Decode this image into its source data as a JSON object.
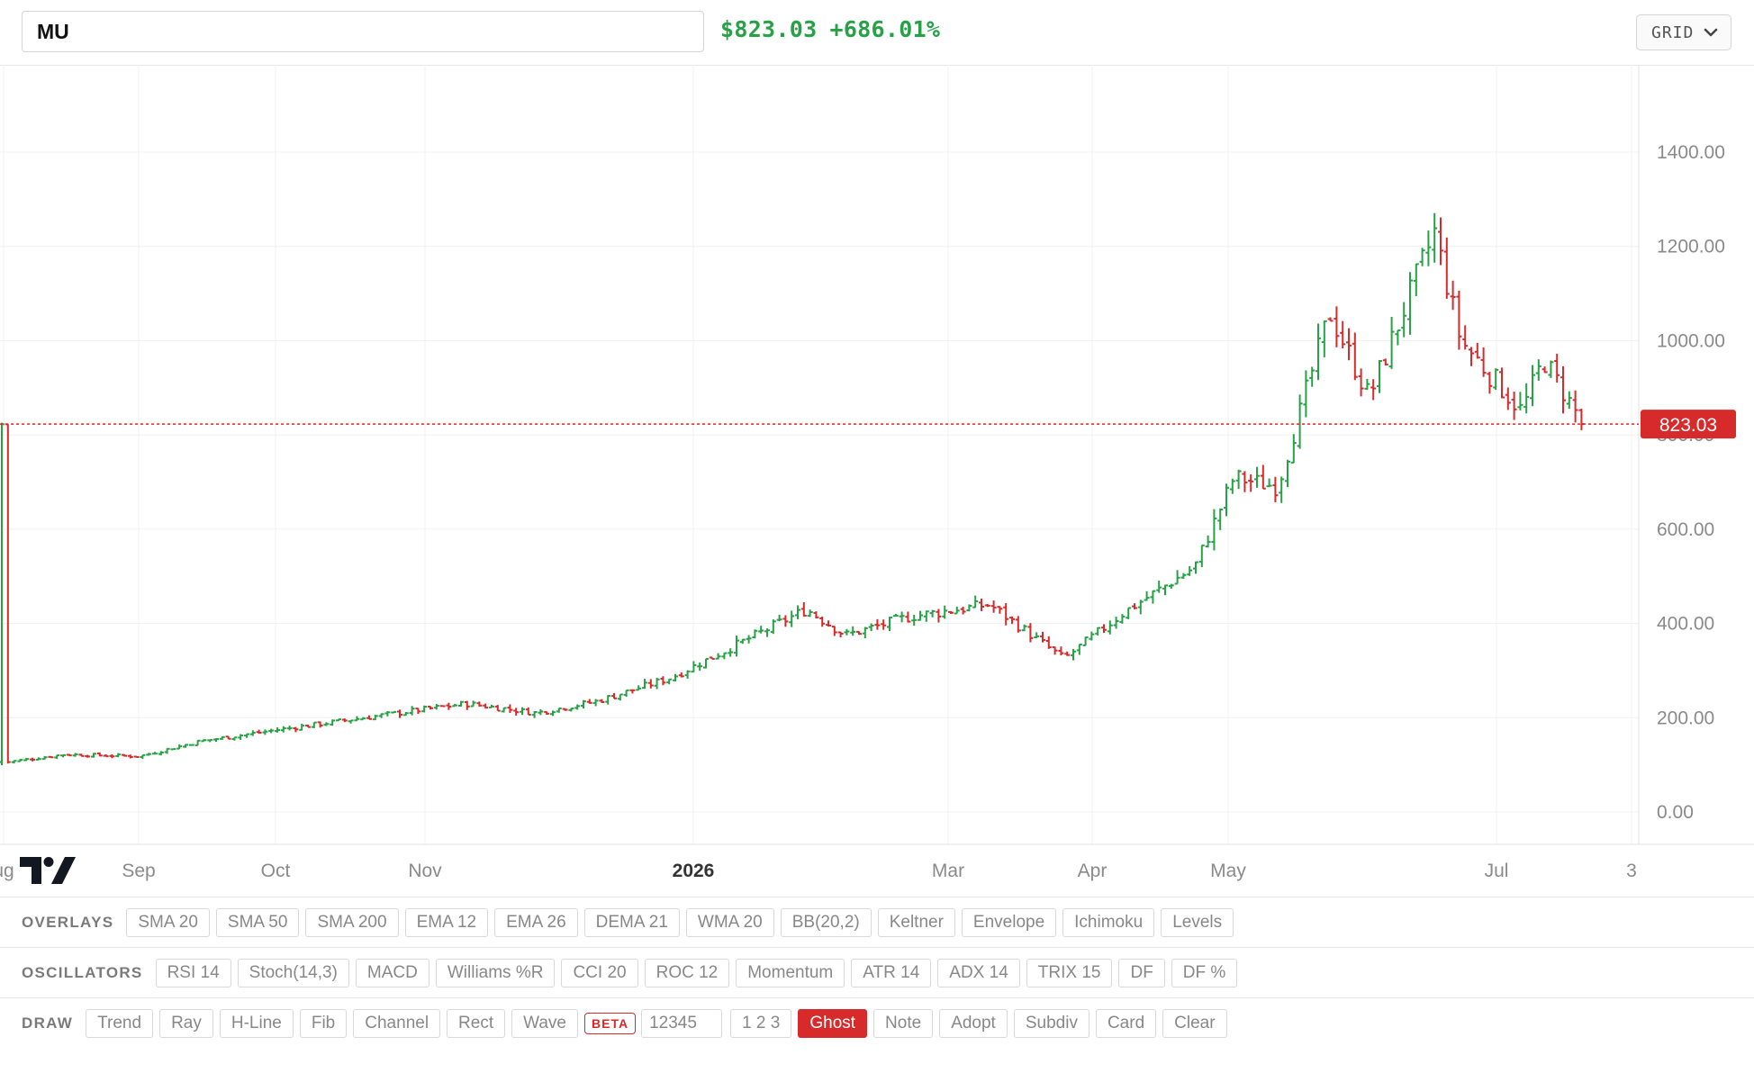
{
  "header": {
    "ticker_value": "MU",
    "price": "$823.03",
    "change": "+686.01%",
    "layout_select": "GRID",
    "up_color": "#26a146",
    "down_color": "#d72a2a"
  },
  "chart": {
    "y_ticks": [
      "0.00",
      "200.00",
      "400.00",
      "600.00",
      "800.00",
      "1000.00",
      "1200.00",
      "1400.00"
    ],
    "x_ticks": [
      "ug",
      "Sep",
      "Oct",
      "Nov",
      "2026",
      "Mar",
      "Apr",
      "May",
      "Jul",
      "3"
    ],
    "last_price_label": "823.03"
  },
  "chart_data": {
    "type": "ohlc",
    "symbol": "MU",
    "y_range": [
      0,
      1450
    ],
    "last_price": 823.03,
    "x_ticks": [
      "Aug",
      "Sep",
      "Oct",
      "Nov",
      "2026",
      "Mar",
      "Apr",
      "May",
      "Jul"
    ],
    "series": [
      {
        "name": "MU",
        "close_path": [
          {
            "date": "2025-08-01",
            "close": 105
          },
          {
            "date": "2025-08-15",
            "close": 122
          },
          {
            "date": "2025-09-01",
            "close": 118
          },
          {
            "date": "2025-09-15",
            "close": 150
          },
          {
            "date": "2025-10-01",
            "close": 172
          },
          {
            "date": "2025-10-15",
            "close": 190
          },
          {
            "date": "2025-11-01",
            "close": 212
          },
          {
            "date": "2025-11-15",
            "close": 230
          },
          {
            "date": "2025-12-01",
            "close": 210
          },
          {
            "date": "2025-12-15",
            "close": 235
          },
          {
            "date": "2026-01-01",
            "close": 285
          },
          {
            "date": "2026-01-15",
            "close": 350
          },
          {
            "date": "2026-02-01",
            "close": 430
          },
          {
            "date": "2026-02-10",
            "close": 375
          },
          {
            "date": "2026-02-25",
            "close": 415
          },
          {
            "date": "2026-03-15",
            "close": 440
          },
          {
            "date": "2026-04-01",
            "close": 325
          },
          {
            "date": "2026-04-15",
            "close": 425
          },
          {
            "date": "2026-05-01",
            "close": 520
          },
          {
            "date": "2026-05-10",
            "close": 710
          },
          {
            "date": "2026-05-20",
            "close": 690
          },
          {
            "date": "2026-06-01",
            "close": 1060
          },
          {
            "date": "2026-06-10",
            "close": 880
          },
          {
            "date": "2026-06-25",
            "close": 1230
          },
          {
            "date": "2026-07-01",
            "close": 1000
          },
          {
            "date": "2026-07-15",
            "close": 850
          },
          {
            "date": "2026-07-20",
            "close": 960
          },
          {
            "date": "2026-07-29",
            "close": 823.03
          }
        ]
      }
    ]
  },
  "toolbars": {
    "overlays": {
      "label": "OVERLAYS",
      "items": [
        "SMA 20",
        "SMA 50",
        "SMA 200",
        "EMA 12",
        "EMA 26",
        "DEMA 21",
        "WMA 20",
        "BB(20,2)",
        "Keltner",
        "Envelope",
        "Ichimoku",
        "Levels"
      ]
    },
    "oscillators": {
      "label": "OSCILLATORS",
      "items": [
        "RSI 14",
        "Stoch(14,3)",
        "MACD",
        "Williams %R",
        "CCI 20",
        "ROC 12",
        "Momentum",
        "ATR 14",
        "ADX 14",
        "TRIX 15",
        "DF",
        "DF %"
      ]
    },
    "draw": {
      "label": "DRAW",
      "items_before": [
        "Trend",
        "Ray",
        "H-Line",
        "Fib",
        "Channel",
        "Rect",
        "Wave"
      ],
      "beta_badge": "BETA",
      "wave_input_value": "12345",
      "items_after": [
        "1 2 3",
        "Ghost",
        "Note",
        "Adopt",
        "Subdiv",
        "Card",
        "Clear"
      ],
      "active_item": "Ghost"
    }
  }
}
